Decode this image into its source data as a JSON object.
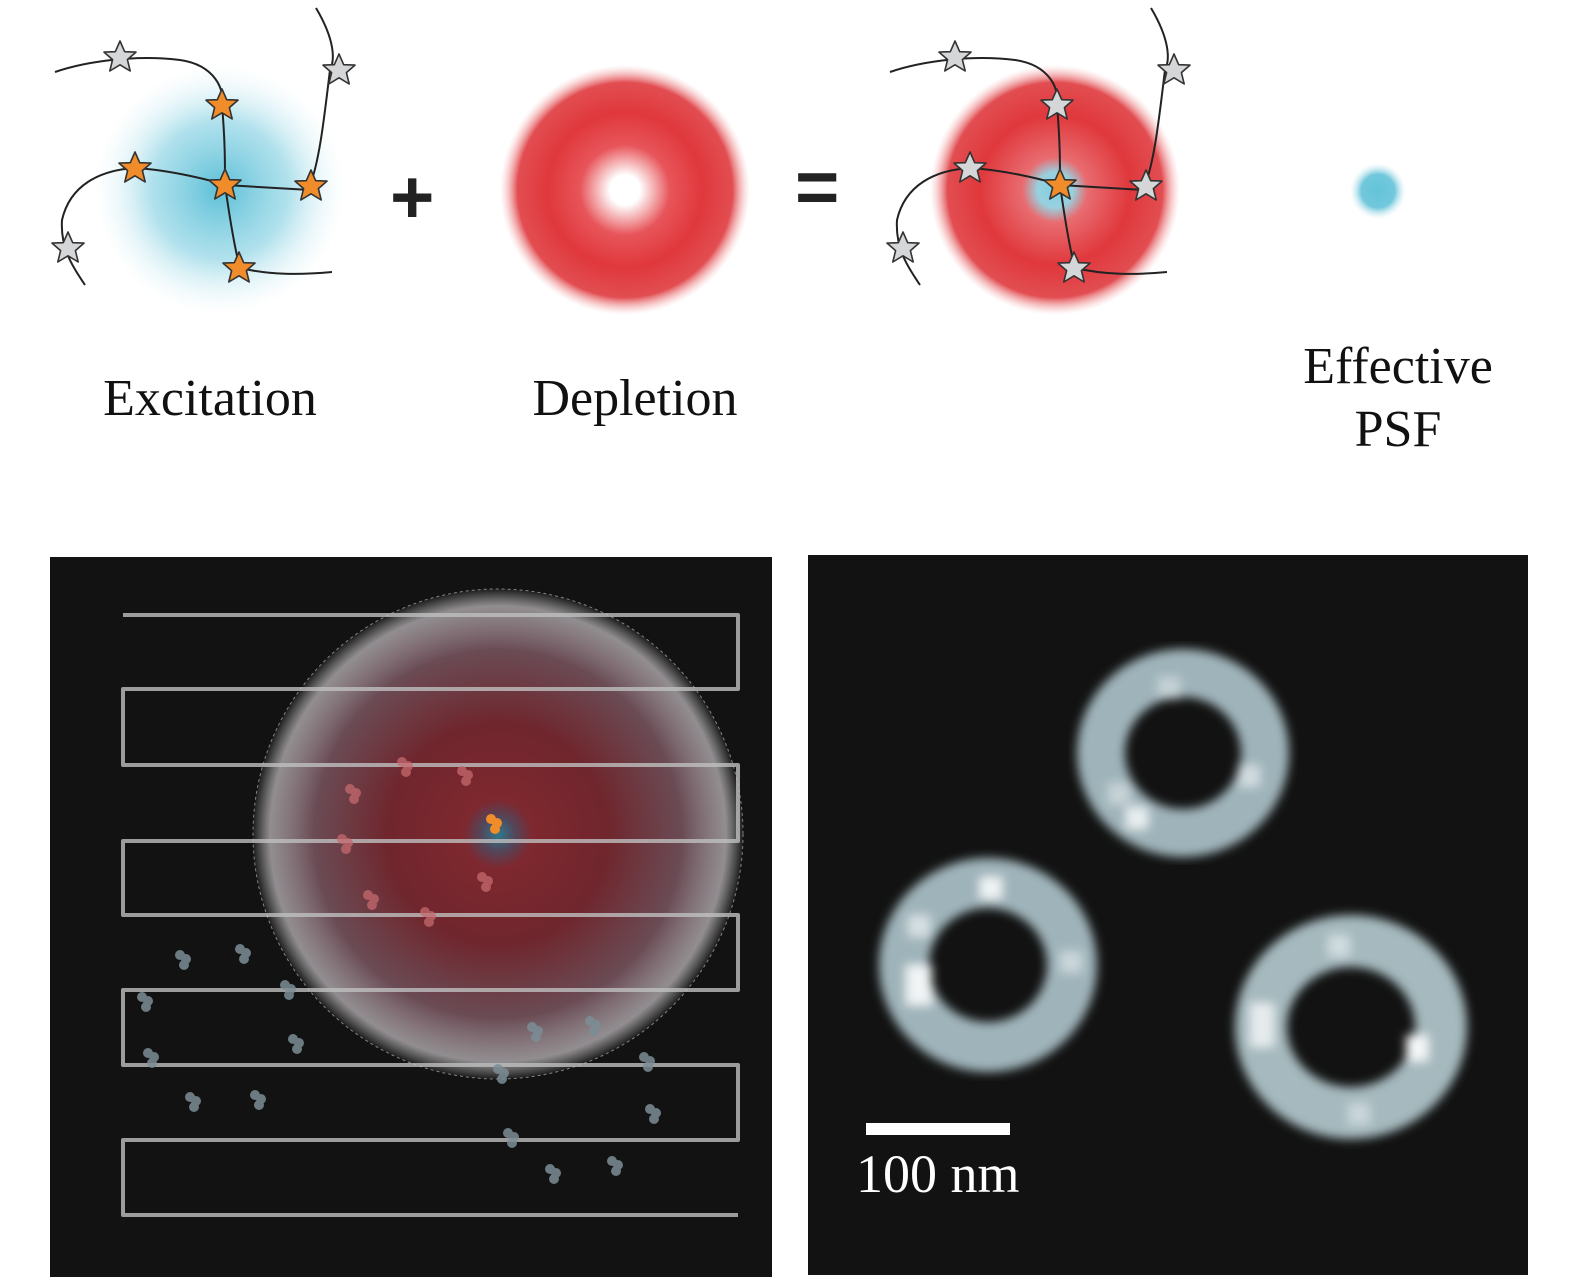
{
  "top": {
    "operators": {
      "plus": "+",
      "equals": "="
    },
    "labels": {
      "excitation": "Excitation",
      "depletion": "Depletion",
      "effective_psf_line1": "Effective",
      "effective_psf_line2": "PSF"
    }
  },
  "bottom_right": {
    "scale_bar_label": "100 nm"
  },
  "colors": {
    "excitation_blue": "#5fc3d8",
    "depletion_red": "#e0383c",
    "fluorophore_on": "#f08c2a",
    "fluorophore_off": "#d4d6d8",
    "panel_background": "#121212",
    "scan_line": "#bfbfbf"
  },
  "icons": [
    "star-fluorophore-icon",
    "plus-icon",
    "equals-icon",
    "scale-bar"
  ]
}
